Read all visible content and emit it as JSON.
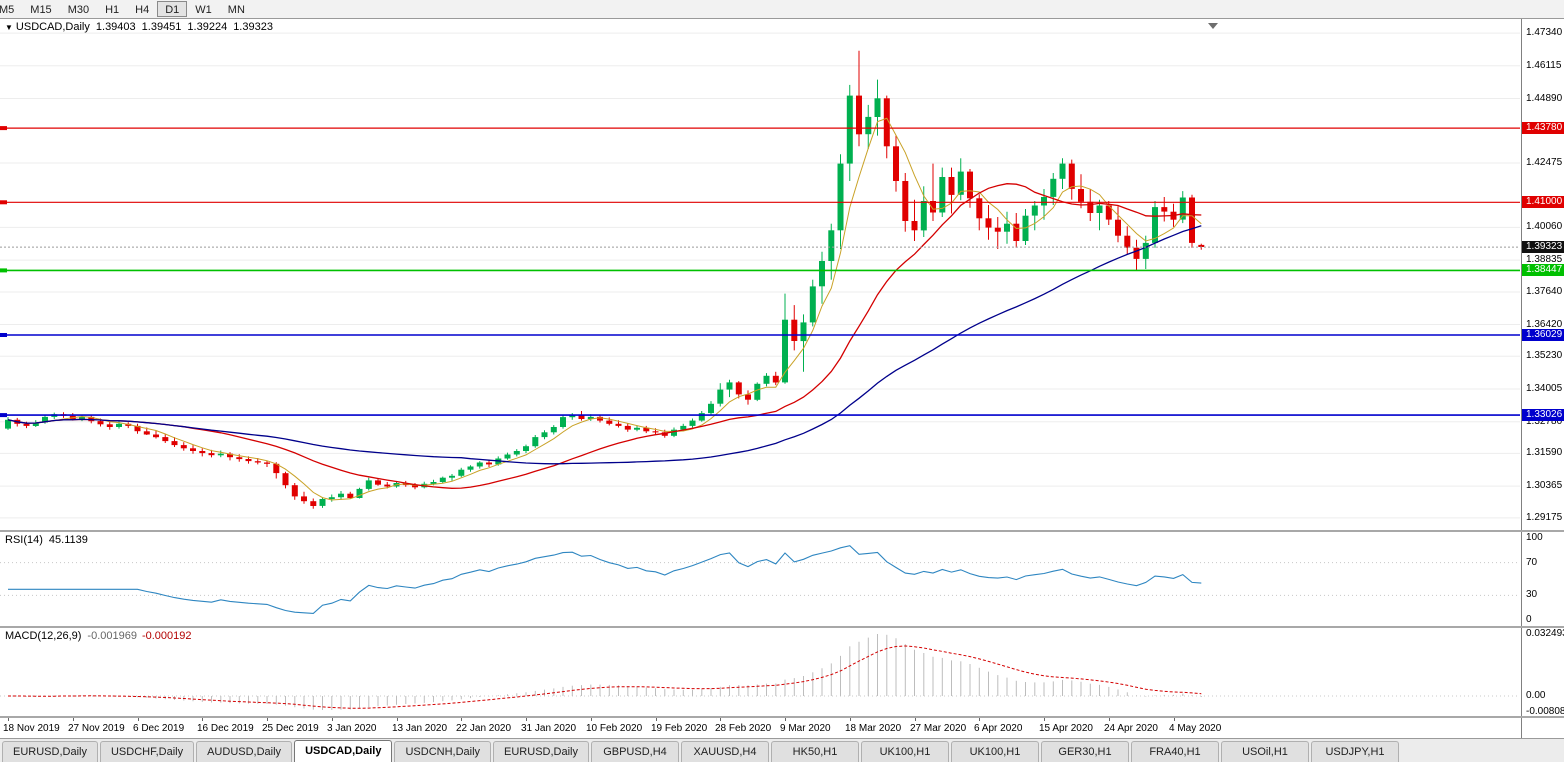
{
  "icons": {
    "triangle_down": "▼"
  },
  "toolbar": {
    "timeframes": [
      "M5",
      "M15",
      "M30",
      "H1",
      "H4",
      "D1",
      "W1",
      "MN"
    ],
    "active": "D1"
  },
  "chart": {
    "title": {
      "symbol": "USDCAD,Daily",
      "open": "1.39403",
      "high": "1.39451",
      "low": "1.39224",
      "close": "1.39323"
    },
    "colors": {
      "up": "#00B050",
      "down": "#E00000",
      "grid": "#ededed"
    },
    "price_axis": {
      "top_price": 1.4787,
      "bottom_price": 1.2872,
      "labels": [
        "1.47340",
        "1.46115",
        "1.44890",
        "1.42475",
        "1.40060",
        "1.38835",
        "1.37640",
        "1.36420",
        "1.35230",
        "1.34005",
        "1.32780",
        "1.31590",
        "1.30365",
        "1.29175"
      ]
    },
    "hlines": [
      {
        "value": 1.4378,
        "label": "1.43780",
        "color": "#E00000",
        "width": 1.2
      },
      {
        "value": 1.41,
        "label": "1.41000",
        "color": "#E00000",
        "width": 1.2
      },
      {
        "value": 1.38447,
        "label": "1.38447",
        "color": "#00C000",
        "width": 1.6
      },
      {
        "value": 1.36029,
        "label": "1.36029",
        "color": "#0000CD",
        "width": 1.6
      },
      {
        "value": 1.33026,
        "label": "1.33026",
        "color": "#0000CD",
        "width": 1.6
      }
    ],
    "current_price": {
      "value": 1.39323,
      "label": "1.39323",
      "box_color": "#111111",
      "line_color": "#9a9a9a"
    },
    "moving_averages": [
      {
        "period": 5,
        "color": "#C9A227",
        "width": 1
      },
      {
        "period": 20,
        "color": "#D40000",
        "width": 1.3
      },
      {
        "period": 50,
        "color": "#00008B",
        "width": 1.3
      }
    ],
    "date_labels": [
      "18 Nov 2019",
      "27 Nov 2019",
      "6 Dec 2019",
      "16 Dec 2019",
      "25 Dec 2019",
      "3 Jan 2020",
      "13 Jan 2020",
      "22 Jan 2020",
      "31 Jan 2020",
      "10 Feb 2020",
      "19 Feb 2020",
      "28 Feb 2020",
      "9 Mar 2020",
      "18 Mar 2020",
      "27 Mar 2020",
      "6 Apr 2020",
      "15 Apr 2020",
      "24 Apr 2020",
      "4 May 2020"
    ],
    "bars_per_label": 7,
    "candles": [
      [
        1.3252,
        1.3295,
        1.3247,
        1.3285
      ],
      [
        1.3285,
        1.3292,
        1.326,
        1.327
      ],
      [
        1.327,
        1.3278,
        1.3254,
        1.3262
      ],
      [
        1.3262,
        1.3284,
        1.3258,
        1.3275
      ],
      [
        1.3275,
        1.3305,
        1.327,
        1.3296
      ],
      [
        1.3296,
        1.3312,
        1.3288,
        1.3306
      ],
      [
        1.3306,
        1.3313,
        1.3292,
        1.33
      ],
      [
        1.33,
        1.331,
        1.3282,
        1.3288
      ],
      [
        1.3288,
        1.3303,
        1.328,
        1.3296
      ],
      [
        1.3296,
        1.3301,
        1.3272,
        1.328
      ],
      [
        1.328,
        1.329,
        1.326,
        1.3268
      ],
      [
        1.3268,
        1.3278,
        1.3248,
        1.3258
      ],
      [
        1.3258,
        1.328,
        1.3252,
        1.327
      ],
      [
        1.327,
        1.3276,
        1.3254,
        1.3262
      ],
      [
        1.3262,
        1.327,
        1.3233,
        1.3242
      ],
      [
        1.3242,
        1.3256,
        1.3228,
        1.323
      ],
      [
        1.323,
        1.3245,
        1.3215,
        1.322
      ],
      [
        1.322,
        1.3233,
        1.3198,
        1.3205
      ],
      [
        1.3205,
        1.322,
        1.3183,
        1.319
      ],
      [
        1.319,
        1.3201,
        1.3169,
        1.3178
      ],
      [
        1.3178,
        1.319,
        1.3158,
        1.3168
      ],
      [
        1.3168,
        1.3178,
        1.3148,
        1.316
      ],
      [
        1.316,
        1.3172,
        1.3144,
        1.3152
      ],
      [
        1.3152,
        1.317,
        1.3145,
        1.3158
      ],
      [
        1.3158,
        1.3164,
        1.3133,
        1.3145
      ],
      [
        1.3145,
        1.3156,
        1.3128,
        1.3138
      ],
      [
        1.3138,
        1.3148,
        1.3121,
        1.313
      ],
      [
        1.313,
        1.3142,
        1.3118,
        1.3125
      ],
      [
        1.3125,
        1.3132,
        1.3108,
        1.312
      ],
      [
        1.312,
        1.3126,
        1.3065,
        1.3085
      ],
      [
        1.3085,
        1.309,
        1.3028,
        1.304
      ],
      [
        1.304,
        1.3048,
        1.2985,
        1.2998
      ],
      [
        1.2998,
        1.3015,
        1.297,
        1.298
      ],
      [
        1.298,
        1.299,
        1.2952,
        1.2962
      ],
      [
        1.2962,
        1.2995,
        1.2955,
        1.2988
      ],
      [
        1.2988,
        1.3005,
        1.2978,
        1.2995
      ],
      [
        1.2995,
        1.3018,
        1.2985,
        1.3008
      ],
      [
        1.3008,
        1.3015,
        1.2988,
        1.2992
      ],
      [
        1.2992,
        1.303,
        1.299,
        1.3026
      ],
      [
        1.3026,
        1.3068,
        1.302,
        1.3058
      ],
      [
        1.3058,
        1.3065,
        1.3038,
        1.3042
      ],
      [
        1.3042,
        1.3052,
        1.3028,
        1.3035
      ],
      [
        1.3035,
        1.3055,
        1.303,
        1.3048
      ],
      [
        1.3048,
        1.3056,
        1.3034,
        1.304
      ],
      [
        1.304,
        1.3048,
        1.3025,
        1.3032
      ],
      [
        1.3032,
        1.3053,
        1.3028,
        1.3045
      ],
      [
        1.3045,
        1.306,
        1.304,
        1.3052
      ],
      [
        1.3052,
        1.3072,
        1.3048,
        1.3068
      ],
      [
        1.3068,
        1.3082,
        1.3056,
        1.3075
      ],
      [
        1.3075,
        1.3105,
        1.307,
        1.3098
      ],
      [
        1.3098,
        1.3115,
        1.309,
        1.311
      ],
      [
        1.311,
        1.313,
        1.3102,
        1.3125
      ],
      [
        1.3125,
        1.3133,
        1.3108,
        1.3118
      ],
      [
        1.3118,
        1.3148,
        1.3113,
        1.314
      ],
      [
        1.314,
        1.3162,
        1.3135,
        1.3155
      ],
      [
        1.3155,
        1.3175,
        1.3148,
        1.3168
      ],
      [
        1.3168,
        1.3192,
        1.316,
        1.3186
      ],
      [
        1.3186,
        1.3228,
        1.318,
        1.322
      ],
      [
        1.322,
        1.3246,
        1.3212,
        1.3238
      ],
      [
        1.3238,
        1.3265,
        1.323,
        1.3258
      ],
      [
        1.3258,
        1.3302,
        1.3252,
        1.3295
      ],
      [
        1.3295,
        1.331,
        1.3285,
        1.3302
      ],
      [
        1.3302,
        1.3318,
        1.3282,
        1.3288
      ],
      [
        1.3288,
        1.3306,
        1.3281,
        1.3296
      ],
      [
        1.3296,
        1.3303,
        1.3275,
        1.3282
      ],
      [
        1.3282,
        1.3294,
        1.3264,
        1.327
      ],
      [
        1.327,
        1.3283,
        1.3256,
        1.3262
      ],
      [
        1.3262,
        1.3271,
        1.324,
        1.3248
      ],
      [
        1.3248,
        1.3264,
        1.3242,
        1.3255
      ],
      [
        1.3255,
        1.3262,
        1.3235,
        1.3242
      ],
      [
        1.3242,
        1.3253,
        1.323,
        1.3238
      ],
      [
        1.3238,
        1.3248,
        1.3218,
        1.3225
      ],
      [
        1.3225,
        1.3256,
        1.322,
        1.3248
      ],
      [
        1.3248,
        1.327,
        1.3242,
        1.3262
      ],
      [
        1.3262,
        1.329,
        1.3256,
        1.3282
      ],
      [
        1.3282,
        1.3318,
        1.3278,
        1.331
      ],
      [
        1.331,
        1.3355,
        1.3305,
        1.3345
      ],
      [
        1.3345,
        1.3422,
        1.3335,
        1.3398
      ],
      [
        1.3398,
        1.3435,
        1.337,
        1.3425
      ],
      [
        1.3425,
        1.343,
        1.3365,
        1.338
      ],
      [
        1.338,
        1.3395,
        1.3342,
        1.336
      ],
      [
        1.336,
        1.3425,
        1.3355,
        1.342
      ],
      [
        1.342,
        1.346,
        1.341,
        1.345
      ],
      [
        1.345,
        1.3465,
        1.3415,
        1.3425
      ],
      [
        1.3425,
        1.3758,
        1.342,
        1.366
      ],
      [
        1.366,
        1.3715,
        1.3545,
        1.358
      ],
      [
        1.358,
        1.368,
        1.3465,
        1.365
      ],
      [
        1.365,
        1.381,
        1.3635,
        1.3785
      ],
      [
        1.3785,
        1.3915,
        1.372,
        1.388
      ],
      [
        1.388,
        1.402,
        1.381,
        1.3995
      ],
      [
        1.3995,
        1.428,
        1.3925,
        1.4245
      ],
      [
        1.4245,
        1.454,
        1.418,
        1.45
      ],
      [
        1.45,
        1.4668,
        1.431,
        1.4355
      ],
      [
        1.4355,
        1.4465,
        1.43,
        1.442
      ],
      [
        1.442,
        1.456,
        1.435,
        1.449
      ],
      [
        1.449,
        1.45,
        1.4265,
        1.431
      ],
      [
        1.431,
        1.435,
        1.414,
        1.418
      ],
      [
        1.418,
        1.421,
        1.399,
        1.403
      ],
      [
        1.403,
        1.411,
        1.3955,
        1.3995
      ],
      [
        1.3995,
        1.416,
        1.397,
        1.4105
      ],
      [
        1.4105,
        1.4245,
        1.403,
        1.4062
      ],
      [
        1.4062,
        1.423,
        1.4045,
        1.4195
      ],
      [
        1.4195,
        1.423,
        1.4058,
        1.4128
      ],
      [
        1.4128,
        1.4265,
        1.4108,
        1.4215
      ],
      [
        1.4215,
        1.4225,
        1.408,
        1.4115
      ],
      [
        1.4115,
        1.413,
        1.3995,
        1.404
      ],
      [
        1.404,
        1.409,
        1.396,
        1.4005
      ],
      [
        1.4005,
        1.4045,
        1.3925,
        1.399
      ],
      [
        1.399,
        1.4065,
        1.3945,
        1.402
      ],
      [
        1.402,
        1.406,
        1.393,
        1.3955
      ],
      [
        1.3955,
        1.4075,
        1.394,
        1.405
      ],
      [
        1.405,
        1.4105,
        1.3995,
        1.4088
      ],
      [
        1.4088,
        1.415,
        1.4035,
        1.412
      ],
      [
        1.412,
        1.421,
        1.409,
        1.4188
      ],
      [
        1.4188,
        1.4265,
        1.415,
        1.4245
      ],
      [
        1.4245,
        1.426,
        1.411,
        1.415
      ],
      [
        1.415,
        1.4205,
        1.4078,
        1.4102
      ],
      [
        1.4102,
        1.4148,
        1.403,
        1.406
      ],
      [
        1.406,
        1.411,
        1.3995,
        1.4088
      ],
      [
        1.4088,
        1.4105,
        1.4015,
        1.4035
      ],
      [
        1.4035,
        1.4085,
        1.395,
        1.3975
      ],
      [
        1.3975,
        1.401,
        1.3905,
        1.393
      ],
      [
        1.393,
        1.396,
        1.3845,
        1.3888
      ],
      [
        1.3888,
        1.3975,
        1.385,
        1.3948
      ],
      [
        1.3948,
        1.4105,
        1.393,
        1.4082
      ],
      [
        1.4082,
        1.412,
        1.4028,
        1.4065
      ],
      [
        1.4065,
        1.4095,
        1.4008,
        1.4035
      ],
      [
        1.4035,
        1.4142,
        1.4022,
        1.4118
      ],
      [
        1.4118,
        1.4128,
        1.393,
        1.3948
      ],
      [
        1.39403,
        1.39451,
        1.39224,
        1.39323
      ]
    ]
  },
  "rsi": {
    "label": "RSI(14)",
    "value": "45.1139",
    "period": 14,
    "color": "#2E86C1",
    "levels": [
      "100",
      "70",
      "30",
      "0"
    ],
    "level_lines": [
      70,
      30
    ]
  },
  "macd": {
    "label": "MACD(12,26,9)",
    "main_value": "-0.001969",
    "signal_value": "-0.000192",
    "fast": 12,
    "slow": 26,
    "signal": 9,
    "hist_color": "#bdbdbd",
    "signal_color": "#D40000",
    "axis_top": "0.032493",
    "axis_zero": "0.00",
    "axis_bottom": "-0.008086"
  },
  "tabs": {
    "items": [
      "EURUSD,Daily",
      "USDCHF,Daily",
      "AUDUSD,Daily",
      "USDCAD,Daily",
      "USDCNH,Daily",
      "EURUSD,Daily",
      "GBPUSD,H4",
      "XAUUSD,H4",
      "HK50,H1",
      "UK100,H1",
      "UK100,H1",
      "GER30,H1",
      "FRA40,H1",
      "USOil,H1",
      "USDJPY,H1"
    ],
    "active_index": 3
  }
}
